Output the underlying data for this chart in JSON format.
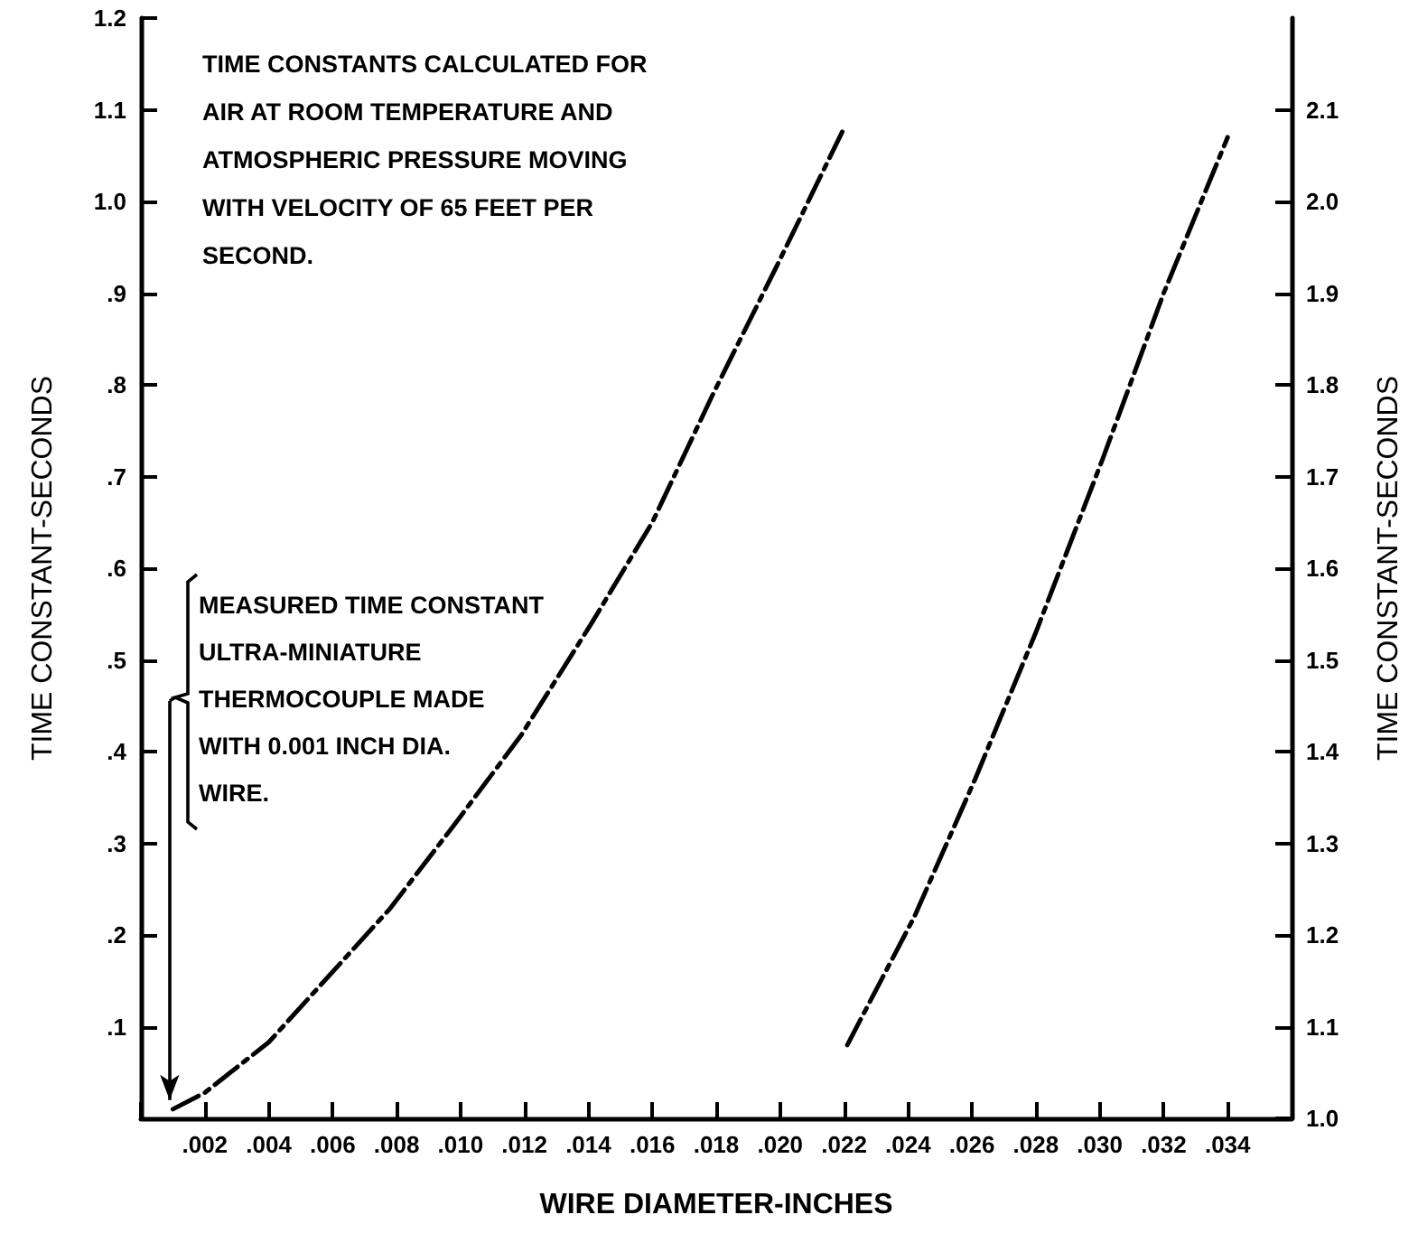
{
  "chart_data": {
    "type": "line",
    "xlabel": "WIRE DIAMETER-INCHES",
    "ylabel": "TIME CONSTANT-SECONDS",
    "y2label": "TIME CONSTANT-SECONDS",
    "annotations": [
      "TIME CONSTANTS CALCULATED FOR\nAIR AT ROOM TEMPERATURE AND\nATMOSPHERIC PRESSURE MOVING\nWITH VELOCITY OF 65 FEET PER\nSECOND.",
      {
        "text": "MEASURED TIME CONSTANT\nULTRA-MINIATURE\nTHERMOCOUPLE MADE\nWITH 0.001 INCH DIA.\nWIRE.",
        "x": 0.0009,
        "y": 0.02
      }
    ],
    "series": [
      {
        "color": "#000000",
        "x": [
          0.001,
          0.002,
          0.004,
          0.0078,
          0.0098,
          0.0119,
          0.0141,
          0.016,
          0.0179,
          0.0199,
          0.022
        ],
        "values": [
          0.01,
          0.028,
          0.083,
          0.229,
          0.32,
          0.418,
          0.54,
          0.65,
          0.79,
          0.93,
          1.08
        ]
      },
      {
        "color": "#000000",
        "axis": "y2",
        "x": [
          0.0221,
          0.0242,
          0.0261,
          0.028,
          0.0301,
          0.032,
          0.034
        ],
        "values": [
          1.08,
          1.22,
          1.37,
          1.53,
          1.72,
          1.9,
          2.07
        ]
      }
    ],
    "xlim": [
      0,
      0.036
    ],
    "xticks": [
      {
        "value": 0,
        "label": null
      },
      {
        "value": 0.002,
        "label": ".002"
      },
      {
        "value": 0.004,
        "label": ".004"
      },
      {
        "value": 0.006,
        "label": ".006"
      },
      {
        "value": 0.008,
        "label": ".008"
      },
      {
        "value": 0.01,
        "label": ".010"
      },
      {
        "value": 0.012,
        "label": ".012"
      },
      {
        "value": 0.014,
        "label": ".014"
      },
      {
        "value": 0.016,
        "label": ".016"
      },
      {
        "value": 0.018,
        "label": ".018"
      },
      {
        "value": 0.02,
        "label": ".020"
      },
      {
        "value": 0.022,
        "label": ".022"
      },
      {
        "value": 0.024,
        "label": ".024"
      },
      {
        "value": 0.026,
        "label": ".026"
      },
      {
        "value": 0.028,
        "label": ".028"
      },
      {
        "value": 0.03,
        "label": ".030"
      },
      {
        "value": 0.032,
        "label": ".032"
      },
      {
        "value": 0.034,
        "label": ".034"
      }
    ],
    "ylim": [
      0,
      1.2
    ],
    "yticks": [
      {
        "value": 0.1,
        "label": ".1"
      },
      {
        "value": 0.2,
        "label": ".2"
      },
      {
        "value": 0.3,
        "label": ".3"
      },
      {
        "value": 0.4,
        "label": ".4"
      },
      {
        "value": 0.5,
        "label": ".5"
      },
      {
        "value": 0.6,
        "label": ".6"
      },
      {
        "value": 0.7,
        "label": ".7"
      },
      {
        "value": 0.8,
        "label": ".8"
      },
      {
        "value": 0.9,
        "label": ".9"
      },
      {
        "value": 1.0,
        "label": "1.0"
      },
      {
        "value": 1.1,
        "label": "1.1"
      },
      {
        "value": 1.2,
        "label": "1.2"
      }
    ],
    "y2lim": [
      1.0,
      2.2
    ],
    "y2ticks": [
      {
        "value": 1.0,
        "label": "1.0"
      },
      1.1,
      1.2,
      1.3,
      1.4,
      1.5,
      1.6,
      1.7,
      1.8,
      1.9,
      {
        "value": 2.0,
        "label": "2.0"
      },
      2.1
    ],
    "marker": "none",
    "line_style": "dashed"
  }
}
